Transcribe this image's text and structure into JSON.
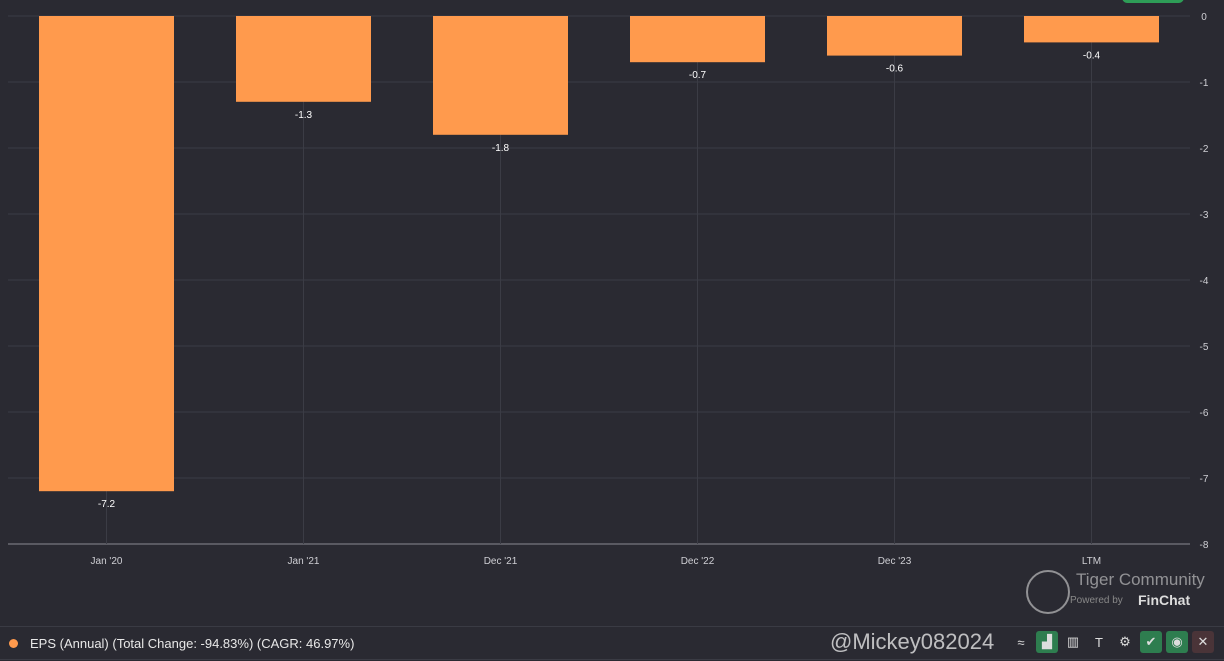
{
  "chart_data": {
    "type": "bar",
    "categories": [
      "Jan '20",
      "Jan '21",
      "Dec '21",
      "Dec '22",
      "Dec '23",
      "LTM"
    ],
    "series": [
      {
        "name": "EPS (Annual) (Total Change: -94.83%) (CAGR: 46.97%)",
        "values": [
          -7.2,
          -1.3,
          -1.8,
          -0.7,
          -0.6,
          -0.4
        ]
      }
    ],
    "data_labels": [
      "-7.2",
      "-1.3",
      "-1.8",
      "-0.7",
      "-0.6",
      "-0.4"
    ],
    "yticks": [
      "0",
      "-1",
      "-2",
      "-3",
      "-4",
      "-5",
      "-6",
      "-7",
      "-8"
    ],
    "ylim": [
      -8,
      0
    ],
    "grid": true,
    "legend_position": "bottom-left",
    "bar_color": "#ff9a4d"
  },
  "branding": {
    "powered": "Powered by",
    "brand": "FinChat"
  },
  "watermark": {
    "community": "Tiger Community",
    "user": "@Mickey082024"
  },
  "toolbar": {
    "icons": [
      "line-chart-icon",
      "bar-chart-icon",
      "bar-chart-alt-icon",
      "text-icon",
      "gear-icon",
      "check-icon",
      "eye-icon",
      "close-icon"
    ]
  }
}
